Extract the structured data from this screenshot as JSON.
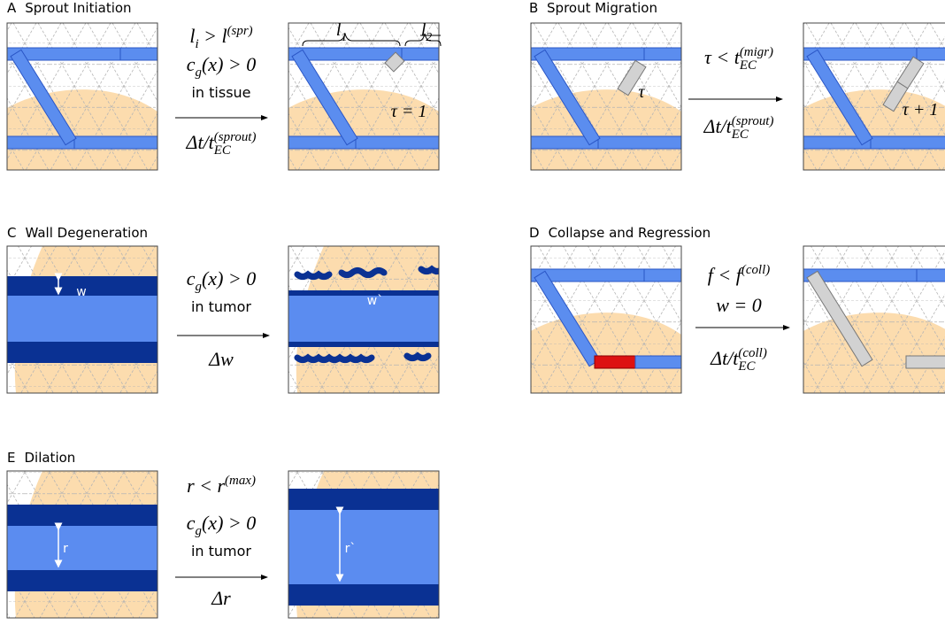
{
  "panels": [
    {
      "label": "A",
      "title": "Sprout Initiation",
      "conditions": [
        [
          {
            "t": "l"
          },
          {
            "sub": "i"
          },
          {
            "t": " > l"
          },
          {
            "sup": "(spr)"
          }
        ],
        [
          {
            "t": "c"
          },
          {
            "sub": "g"
          },
          {
            "t": "(x) > 0"
          }
        ],
        "in tissue"
      ],
      "rate": [
        {
          "t": "Δt/t"
        },
        {
          "sup": "(sprout)"
        },
        {
          "sub": "EC"
        }
      ],
      "annotations": [
        [
          {
            "t": "l"
          },
          {
            "sub": "1"
          }
        ],
        [
          {
            "t": "l"
          },
          {
            "sub": "2"
          }
        ],
        [
          {
            "t": "τ = 1"
          }
        ]
      ]
    },
    {
      "label": "B",
      "title": "Sprout Migration",
      "conditions": [
        [
          {
            "t": "τ < t"
          },
          {
            "sup": "(migr)"
          },
          {
            "sub": "EC"
          }
        ]
      ],
      "rate": [
        {
          "t": "Δt/t"
        },
        {
          "sup": "(sprout)"
        },
        {
          "sub": "EC"
        }
      ],
      "annotations": [
        [
          {
            "t": "τ"
          }
        ],
        [
          {
            "t": "τ + 1"
          }
        ]
      ]
    },
    {
      "label": "C",
      "title": "Wall Degeneration",
      "conditions": [
        [
          {
            "t": "c"
          },
          {
            "sub": "g"
          },
          {
            "t": "(x) > 0"
          }
        ],
        "in tumor"
      ],
      "rate": [
        {
          "t": "Δw"
        }
      ],
      "annotations": [
        "w",
        "w`"
      ]
    },
    {
      "label": "D",
      "title": "Collapse and Regression",
      "conditions": [
        [
          {
            "t": "f < f"
          },
          {
            "sup": "(coll)"
          }
        ],
        [
          {
            "t": "w = 0"
          }
        ]
      ],
      "rate": [
        {
          "t": "Δt/t"
        },
        {
          "sup": "(coll)"
        },
        {
          "sub": "EC"
        }
      ],
      "annotations": []
    },
    {
      "label": "E",
      "title": "Dilation",
      "conditions": [
        [
          {
            "t": "r < r"
          },
          {
            "sup": "(max)"
          }
        ],
        [
          {
            "t": "c"
          },
          {
            "sub": "g"
          },
          {
            "t": "(x) > 0"
          }
        ],
        "in tumor"
      ],
      "rate": [
        {
          "t": "Δr"
        }
      ],
      "annotations": [
        "r",
        "r`"
      ]
    }
  ]
}
